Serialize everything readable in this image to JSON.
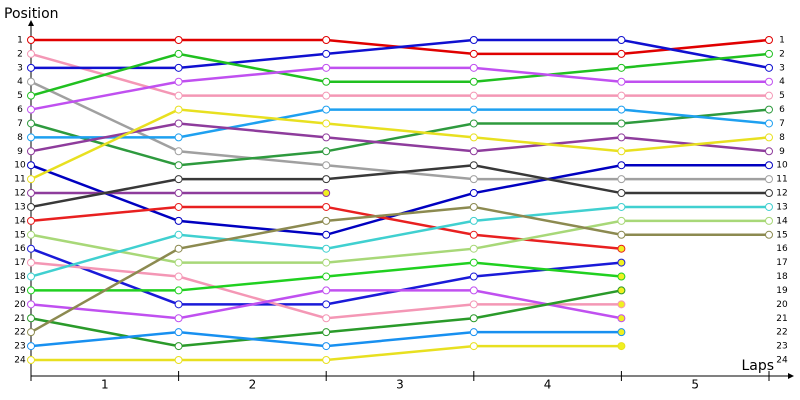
{
  "chart_data": {
    "type": "lap",
    "y_title": "Position",
    "x_title": "Laps",
    "x": [
      0,
      1,
      2,
      3,
      4,
      5
    ],
    "xlim": [
      0,
      5
    ],
    "xticks": [
      {
        "value": 0.5,
        "label": "1"
      },
      {
        "value": 1.5,
        "label": "2"
      },
      {
        "value": 2.5,
        "label": "3"
      },
      {
        "value": 3.5,
        "label": "4"
      },
      {
        "value": 4.5,
        "label": "5"
      }
    ],
    "ylim": [
      1,
      24
    ],
    "y_inverted": true,
    "yticks": [
      1,
      2,
      3,
      4,
      5,
      6,
      7,
      8,
      9,
      10,
      11,
      12,
      13,
      14,
      15,
      16,
      17,
      18,
      19,
      20,
      21,
      22,
      23,
      24
    ],
    "series": [
      {
        "color": "#e00000",
        "values": [
          1,
          1,
          1,
          2,
          2,
          1
        ]
      },
      {
        "color": "#f497b5",
        "values": [
          2,
          5,
          5,
          5,
          5,
          5
        ]
      },
      {
        "color": "#1010d0",
        "values": [
          3,
          3,
          2,
          1,
          1,
          3
        ]
      },
      {
        "color": "#a0a0a0",
        "values": [
          4,
          9,
          10,
          11,
          11,
          11
        ]
      },
      {
        "color": "#20c020",
        "values": [
          5,
          2,
          4,
          4,
          3,
          2
        ]
      },
      {
        "color": "#c050f0",
        "values": [
          6,
          4,
          3,
          3,
          4,
          4
        ]
      },
      {
        "color": "#2e9a3e",
        "values": [
          7,
          10,
          9,
          7,
          7,
          6
        ]
      },
      {
        "color": "#1ea0f0",
        "values": [
          8,
          8,
          6,
          6,
          6,
          7
        ]
      },
      {
        "color": "#8e3c9c",
        "values": [
          9,
          7,
          8,
          9,
          8,
          9
        ]
      },
      {
        "color": "#0000c0",
        "values": [
          10,
          14,
          15,
          12,
          10,
          10
        ]
      },
      {
        "color": "#e8e020",
        "values": [
          11,
          6,
          7,
          8,
          9,
          8
        ]
      },
      {
        "color": "#8e3c9c",
        "values": [
          12,
          12,
          12,
          null,
          null,
          null
        ]
      },
      {
        "color": "#383838",
        "values": [
          13,
          11,
          11,
          10,
          12,
          12
        ]
      },
      {
        "color": "#e82020",
        "values": [
          14,
          13,
          13,
          15,
          16,
          null
        ]
      },
      {
        "color": "#a8d878",
        "values": [
          15,
          17,
          17,
          16,
          14,
          14
        ]
      },
      {
        "color": "#1a1ad8",
        "values": [
          16,
          20,
          20,
          18,
          17,
          null
        ]
      },
      {
        "color": "#f497b5",
        "values": [
          17,
          18,
          21,
          20,
          20,
          null
        ]
      },
      {
        "color": "#40d0d0",
        "values": [
          18,
          15,
          16,
          14,
          13,
          13
        ]
      },
      {
        "color": "#20d020",
        "values": [
          19,
          19,
          18,
          17,
          18,
          null
        ]
      },
      {
        "color": "#c050f0",
        "values": [
          20,
          21,
          19,
          19,
          21,
          null
        ]
      },
      {
        "color": "#2a9a2a",
        "values": [
          21,
          23,
          22,
          21,
          19,
          null
        ]
      },
      {
        "color": "#8c8a50",
        "values": [
          22,
          16,
          14,
          13,
          15,
          15
        ]
      },
      {
        "color": "#1890f0",
        "values": [
          23,
          22,
          23,
          22,
          22,
          null
        ]
      },
      {
        "color": "#e8e020",
        "values": [
          24,
          24,
          24,
          23,
          23,
          null
        ]
      }
    ]
  }
}
